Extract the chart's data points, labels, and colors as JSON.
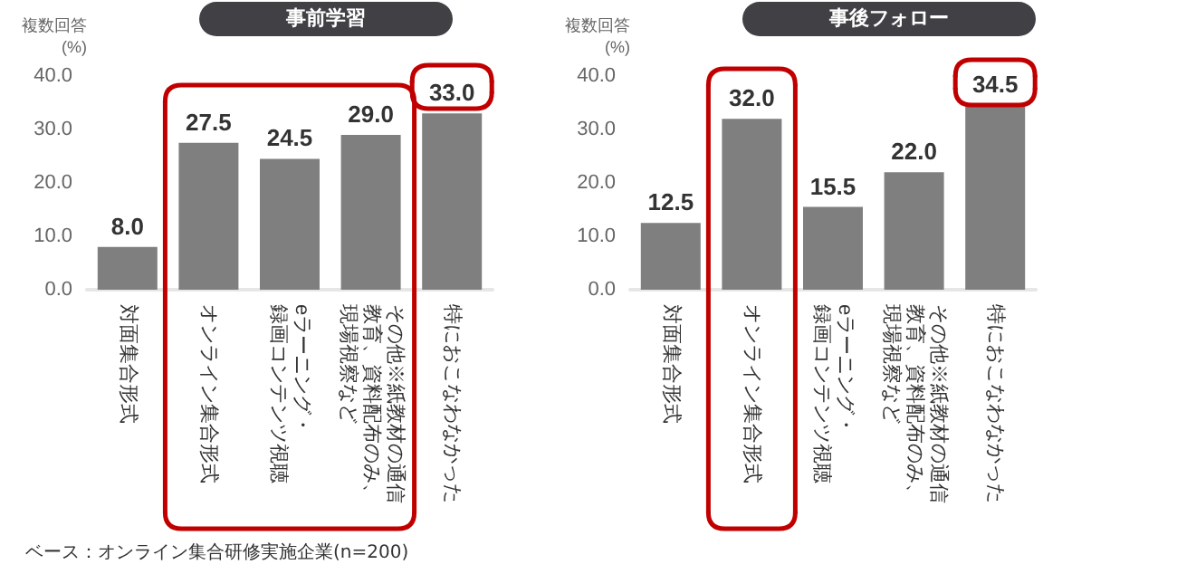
{
  "chart_data": [
    {
      "type": "bar",
      "title": "事前学習",
      "ylabel": "複数回答\n(%)",
      "categories": [
        "対面集合形式",
        "オンライン集合形式",
        "eラーニング・録画コンテンツ視聴",
        "その他※紙教材の通信教育、資料配布のみ、現場視察など",
        "特におこなわなかった"
      ],
      "values": [
        8.0,
        27.5,
        24.5,
        29.0,
        33.0
      ],
      "color": "#7f7f7f",
      "value_labels": [
        "8.0",
        "27.5",
        "24.5",
        "29.0",
        "33.0"
      ],
      "ylim": [
        0,
        40
      ],
      "yticks": [
        {
          "value": 0,
          "label": "0.0"
        },
        {
          "value": 10,
          "label": "10.0"
        },
        {
          "value": 20,
          "label": "20.0"
        },
        {
          "value": 30,
          "label": "30.0"
        },
        {
          "value": 40,
          "label": "40.0"
        }
      ],
      "grid": false,
      "annotations": [
        "ベース：オンライン集合研修実施企業(n=200)"
      ]
    },
    {
      "type": "bar",
      "title": "事後フォロー",
      "ylabel": "複数回答\n(%)",
      "categories": [
        "対面集合形式",
        "オンライン集合形式",
        "eラーニング・録画コンテンツ視聴",
        "その他※紙教材の通信教育、資料配布のみ、現場視察など",
        "特におこなわなかった"
      ],
      "values": [
        12.5,
        32.0,
        15.5,
        22.0,
        34.5
      ],
      "color": "#7f7f7f",
      "value_labels": [
        "12.5",
        "32.0",
        "15.5",
        "22.0",
        "34.5"
      ],
      "ylim": [
        0,
        40
      ],
      "yticks": [
        {
          "value": 0,
          "label": "0.0"
        },
        {
          "value": 10,
          "label": "10.0"
        },
        {
          "value": 20,
          "label": "20.0"
        },
        {
          "value": 30,
          "label": "30.0"
        },
        {
          "value": 40,
          "label": "40.0"
        }
      ],
      "grid": false
    }
  ]
}
